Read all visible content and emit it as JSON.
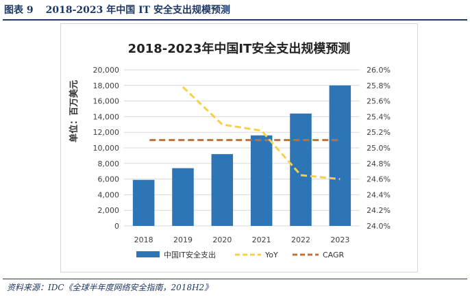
{
  "caption": {
    "label": "图表 9",
    "title": "2018-2023 年中国 IT 安全支出规模预测"
  },
  "source": "资料来源：IDC《全球半年度网络安全指南，2018H2》",
  "colors": {
    "caption": "#1f3864",
    "bar": "#2e75b6",
    "yoy": "#f5d04a",
    "cagr": "#c0703c"
  },
  "chart_data": {
    "type": "bar",
    "title": "2018-2023年中国IT安全支出规模预测",
    "ylabel": "单位：百万美元",
    "categories": [
      "2018",
      "2019",
      "2020",
      "2021",
      "2022",
      "2023"
    ],
    "ylim": [
      0,
      20000
    ],
    "y_ticks": [
      "0",
      "2,000",
      "4,000",
      "6,000",
      "8,000",
      "10,000",
      "12,000",
      "14,000",
      "16,000",
      "18,000",
      "20,000"
    ],
    "y2lim": [
      24.0,
      26.0
    ],
    "y2_ticks": [
      "24.0%",
      "24.2%",
      "24.4%",
      "24.6%",
      "24.8%",
      "25.0%",
      "25.2%",
      "25.4%",
      "25.6%",
      "25.8%",
      "26.0%"
    ],
    "grid": true,
    "legend_position": "bottom",
    "series": [
      {
        "name": "中国IT安全支出",
        "type": "bar",
        "axis": "left",
        "values": [
          5900,
          7400,
          9200,
          11600,
          14400,
          18000
        ]
      },
      {
        "name": "YoY",
        "type": "line",
        "style": "dashed",
        "axis": "right",
        "values": [
          null,
          25.78,
          25.3,
          25.22,
          24.65,
          24.6
        ]
      },
      {
        "name": "CAGR",
        "type": "line",
        "style": "dashed",
        "axis": "right",
        "values": [
          25.1,
          25.1,
          25.1,
          25.1,
          25.1,
          25.1
        ]
      }
    ]
  }
}
